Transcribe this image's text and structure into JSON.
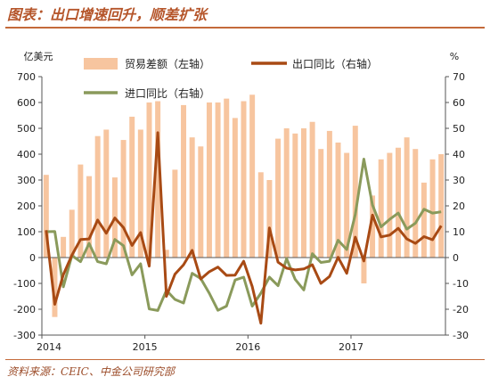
{
  "figure": {
    "title": "图表：出口增速回升，顺差扩张",
    "source": "资料来源：CEIC、中金公司研究部"
  },
  "colors": {
    "bars": "#f7c59f",
    "export_line": "#a84a14",
    "import_line": "#8a9a5b",
    "title": "#b5552a",
    "rule": "#c46a3a"
  },
  "chart_data": {
    "type": "bar",
    "x_tick_labels": [
      "2014",
      "2015",
      "2016",
      "2017"
    ],
    "months": [
      "2014-01",
      "2014-02",
      "2014-03",
      "2014-04",
      "2014-05",
      "2014-06",
      "2014-07",
      "2014-08",
      "2014-09",
      "2014-10",
      "2014-11",
      "2014-12",
      "2015-01",
      "2015-02",
      "2015-03",
      "2015-04",
      "2015-05",
      "2015-06",
      "2015-07",
      "2015-08",
      "2015-09",
      "2015-10",
      "2015-11",
      "2015-12",
      "2016-01",
      "2016-02",
      "2016-03",
      "2016-04",
      "2016-05",
      "2016-06",
      "2016-07",
      "2016-08",
      "2016-09",
      "2016-10",
      "2016-11",
      "2016-12",
      "2017-01",
      "2017-02",
      "2017-03",
      "2017-04",
      "2017-05",
      "2017-06",
      "2017-07",
      "2017-08",
      "2017-09",
      "2017-10",
      "2017-11"
    ],
    "yleft_unit": "亿美元",
    "yright_unit": "%",
    "yleft_lim": [
      -300,
      700
    ],
    "yright_lim": [
      -30,
      70
    ],
    "yleft_ticks": [
      -300,
      -200,
      -100,
      0,
      100,
      200,
      300,
      400,
      500,
      600,
      700
    ],
    "yright_ticks": [
      -30,
      -20,
      -10,
      0,
      10,
      20,
      30,
      40,
      50,
      60,
      70
    ],
    "legend": {
      "bars": "贸易差额（左轴）",
      "export": "出口同比（右轴）",
      "import": "进口同比（右轴）"
    },
    "series": [
      {
        "name": "贸易差额（左轴）",
        "axis": "left",
        "type": "bar",
        "values": [
          320,
          -230,
          80,
          185,
          360,
          315,
          470,
          495,
          310,
          455,
          545,
          495,
          600,
          605,
          30,
          340,
          590,
          465,
          430,
          600,
          600,
          615,
          540,
          605,
          630,
          330,
          300,
          460,
          500,
          480,
          500,
          525,
          420,
          490,
          445,
          405,
          510,
          -100,
          240,
          380,
          405,
          425,
          465,
          420,
          290,
          380,
          400
        ]
      },
      {
        "name": "出口同比（右轴）",
        "axis": "right",
        "type": "line",
        "values": [
          10.6,
          -18.1,
          -6.6,
          0.9,
          7.0,
          7.2,
          14.5,
          9.4,
          15.3,
          11.6,
          4.7,
          9.7,
          -3.3,
          48.3,
          -15.0,
          -6.4,
          -2.8,
          2.8,
          -8.3,
          -5.5,
          -3.7,
          -6.9,
          -6.8,
          -1.4,
          -11.2,
          -25.4,
          11.5,
          -1.8,
          -4.1,
          -4.8,
          -4.4,
          -2.8,
          -10.0,
          -7.3,
          0.1,
          -6.1,
          7.9,
          -1.3,
          16.4,
          8.0,
          8.7,
          11.3,
          7.2,
          5.5,
          8.1,
          6.9,
          12.3
        ]
      },
      {
        "name": "进口同比（右轴）",
        "axis": "right",
        "type": "line",
        "values": [
          10.0,
          10.1,
          -11.3,
          0.8,
          -1.6,
          5.5,
          -1.6,
          -2.4,
          7.0,
          4.6,
          -6.7,
          -2.4,
          -19.9,
          -20.5,
          -12.7,
          -16.2,
          -17.6,
          -6.1,
          -8.1,
          -13.8,
          -20.4,
          -18.8,
          -8.7,
          -7.6,
          -18.8,
          -13.8,
          -7.6,
          -10.9,
          -0.4,
          -8.4,
          -12.5,
          1.5,
          -1.9,
          -1.4,
          6.7,
          3.1,
          16.7,
          38.1,
          20.3,
          11.9,
          14.8,
          17.2,
          11.0,
          13.3,
          18.7,
          17.2,
          17.7
        ]
      }
    ],
    "grid": false,
    "legend_placement": "top"
  }
}
